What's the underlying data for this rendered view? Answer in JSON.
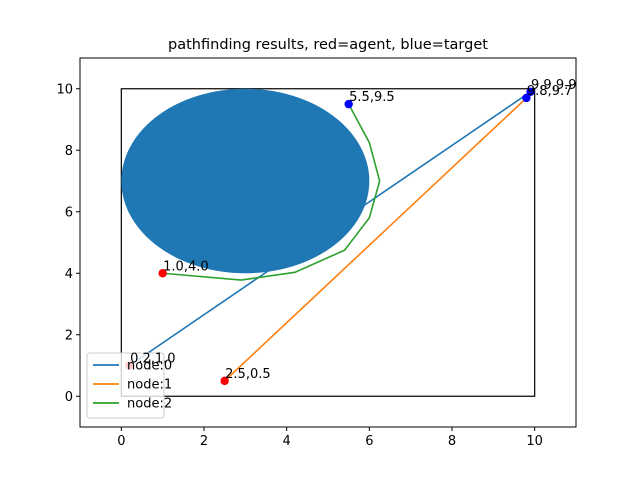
{
  "chart_data": {
    "type": "line",
    "title": "pathfinding results, red=agent, blue=target",
    "xlabel": "",
    "ylabel": "",
    "xlim": [
      -1,
      11
    ],
    "ylim": [
      -1,
      11
    ],
    "xticks": [
      0,
      2,
      4,
      6,
      8,
      10
    ],
    "yticks": [
      0,
      2,
      4,
      6,
      8,
      10
    ],
    "grid": false,
    "legend_position": "lower-left",
    "boundary_rect": {
      "x0": 0,
      "y0": 0,
      "x1": 10,
      "y1": 10
    },
    "obstacle": {
      "shape": "circle",
      "cx": 3,
      "cy": 7,
      "r": 3,
      "color": "#1f77b4"
    },
    "series": [
      {
        "name": "node:0",
        "color": "#1f77b4",
        "points": [
          [
            0.2,
            1.0
          ],
          [
            9.9,
            9.9
          ]
        ]
      },
      {
        "name": "node:1",
        "color": "#ff7f0e",
        "points": [
          [
            2.5,
            0.5
          ],
          [
            9.8,
            9.7
          ]
        ]
      },
      {
        "name": "node:2",
        "color": "#2ca02c",
        "points": [
          [
            1.0,
            4.0
          ],
          [
            2.9,
            3.78
          ],
          [
            4.2,
            4.03
          ],
          [
            5.4,
            4.75
          ],
          [
            6.0,
            5.8
          ],
          [
            6.25,
            7.0
          ],
          [
            6.0,
            8.25
          ],
          [
            5.5,
            9.5
          ]
        ]
      }
    ],
    "agents": [
      {
        "x": 0.2,
        "y": 1.0,
        "label": "0.2,1.0"
      },
      {
        "x": 2.5,
        "y": 0.5,
        "label": "2.5,0.5"
      },
      {
        "x": 1.0,
        "y": 4.0,
        "label": "1.0,4.0"
      }
    ],
    "targets": [
      {
        "x": 9.9,
        "y": 9.9,
        "label": "9.9,9.9"
      },
      {
        "x": 9.8,
        "y": 9.7,
        "label": "9.8,9.7"
      },
      {
        "x": 5.5,
        "y": 9.5,
        "label": "5.5,9.5"
      }
    ],
    "agent_color": "#ff0000",
    "target_color": "#0000ff"
  }
}
